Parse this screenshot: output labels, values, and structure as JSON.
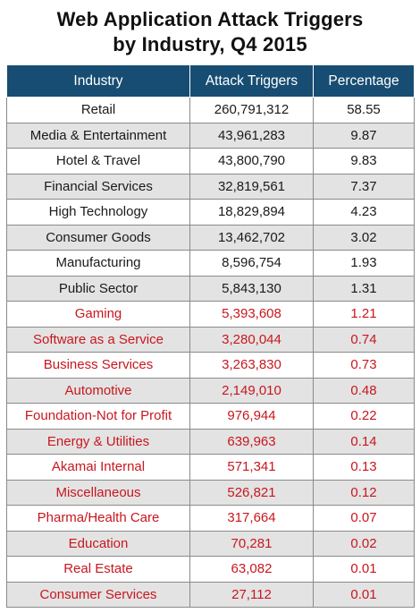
{
  "chart_data": {
    "type": "table",
    "title_line1": "Web Application Attack Triggers",
    "title_line2": "by Industry, Q4 2015",
    "columns": [
      "Industry",
      "Attack Triggers",
      "Percentage"
    ],
    "highlight_color": "#c8171e",
    "header_color": "#174d73",
    "rows": [
      {
        "industry": "Retail",
        "triggers": "260,791,312",
        "percentage": "58.55",
        "highlight": false
      },
      {
        "industry": "Media & Entertainment",
        "triggers": "43,961,283",
        "percentage": "9.87",
        "highlight": false
      },
      {
        "industry": "Hotel & Travel",
        "triggers": "43,800,790",
        "percentage": "9.83",
        "highlight": false
      },
      {
        "industry": "Financial Services",
        "triggers": "32,819,561",
        "percentage": "7.37",
        "highlight": false
      },
      {
        "industry": "High Technology",
        "triggers": "18,829,894",
        "percentage": "4.23",
        "highlight": false
      },
      {
        "industry": "Consumer Goods",
        "triggers": "13,462,702",
        "percentage": "3.02",
        "highlight": false
      },
      {
        "industry": "Manufacturing",
        "triggers": "8,596,754",
        "percentage": "1.93",
        "highlight": false
      },
      {
        "industry": "Public Sector",
        "triggers": "5,843,130",
        "percentage": "1.31",
        "highlight": false
      },
      {
        "industry": "Gaming",
        "triggers": "5,393,608",
        "percentage": "1.21",
        "highlight": true
      },
      {
        "industry": "Software as a Service",
        "triggers": "3,280,044",
        "percentage": "0.74",
        "highlight": true
      },
      {
        "industry": "Business Services",
        "triggers": "3,263,830",
        "percentage": "0.73",
        "highlight": true
      },
      {
        "industry": "Automotive",
        "triggers": "2,149,010",
        "percentage": "0.48",
        "highlight": true
      },
      {
        "industry": "Foundation-Not for Profit",
        "triggers": "976,944",
        "percentage": "0.22",
        "highlight": true
      },
      {
        "industry": "Energy & Utilities",
        "triggers": "639,963",
        "percentage": "0.14",
        "highlight": true
      },
      {
        "industry": "Akamai Internal",
        "triggers": "571,341",
        "percentage": "0.13",
        "highlight": true
      },
      {
        "industry": "Miscellaneous",
        "triggers": "526,821",
        "percentage": "0.12",
        "highlight": true
      },
      {
        "industry": "Pharma/Health Care",
        "triggers": "317,664",
        "percentage": "0.07",
        "highlight": true
      },
      {
        "industry": "Education",
        "triggers": "70,281",
        "percentage": "0.02",
        "highlight": true
      },
      {
        "industry": "Real Estate",
        "triggers": "63,082",
        "percentage": "0.01",
        "highlight": true
      },
      {
        "industry": "Consumer Services",
        "triggers": "27,112",
        "percentage": "0.01",
        "highlight": true
      }
    ]
  }
}
